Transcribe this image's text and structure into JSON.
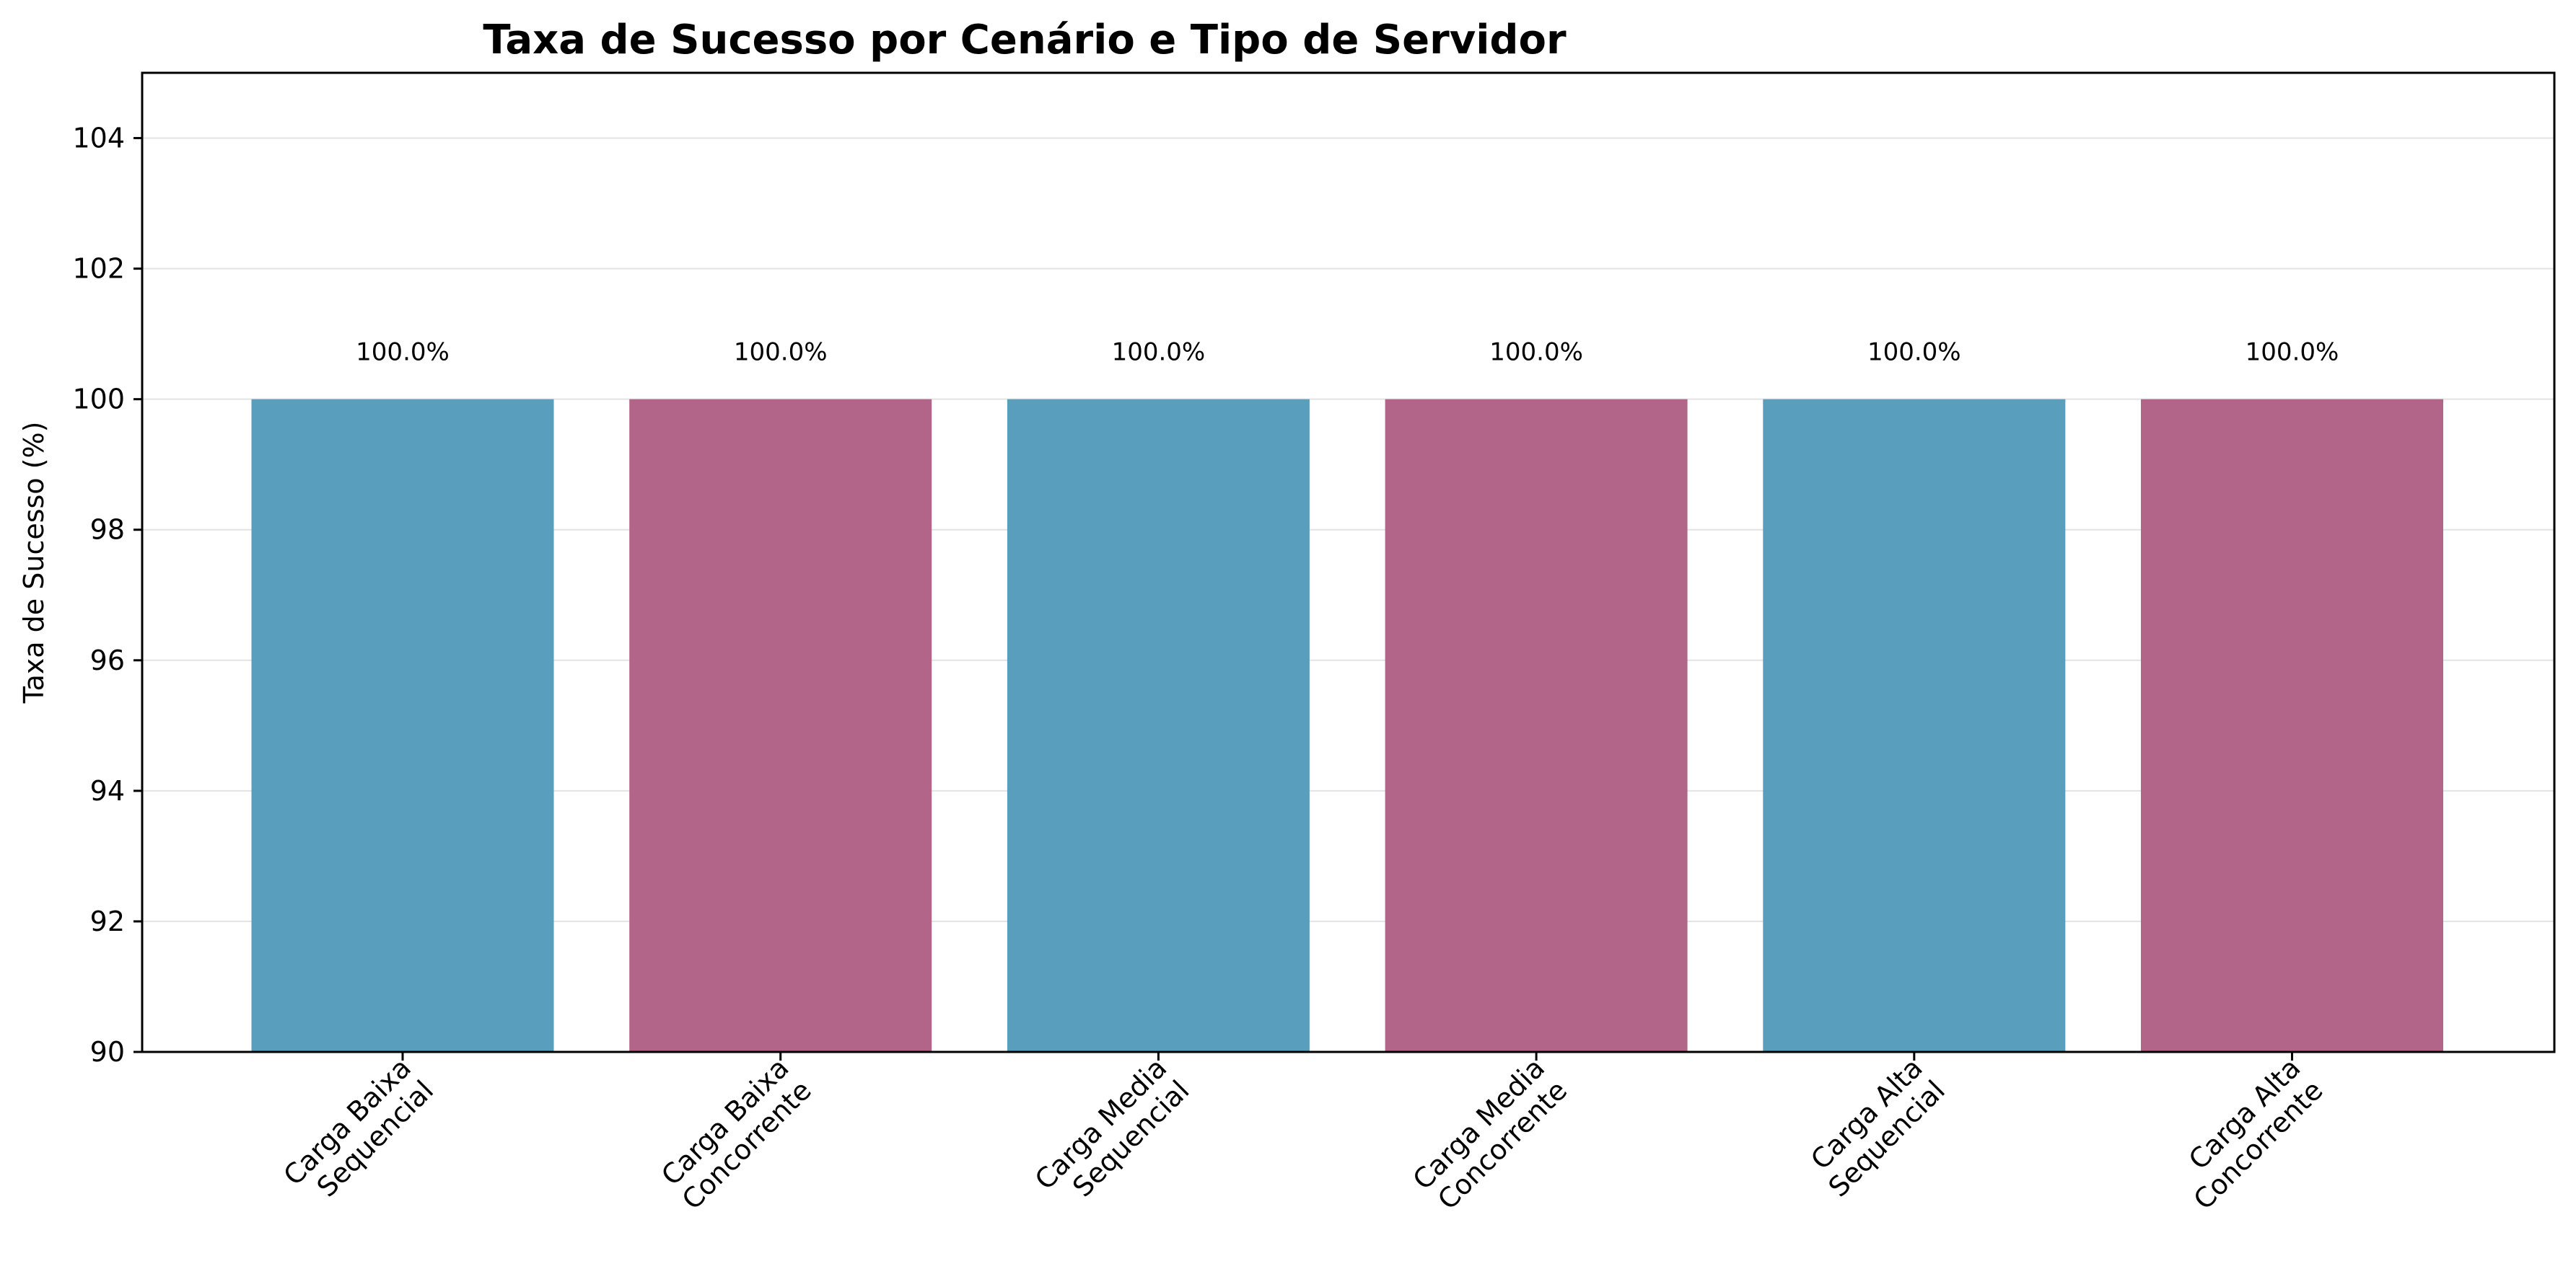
{
  "chart_data": {
    "type": "bar",
    "title": "Taxa de Sucesso por Cenário e Tipo de Servidor",
    "xlabel": "",
    "ylabel": "Taxa de Sucesso (%)",
    "ylim": [
      90,
      105
    ],
    "yticks": [
      "90",
      "92",
      "94",
      "96",
      "98",
      "100",
      "102",
      "104"
    ],
    "grid": "horizontal",
    "categories": [
      [
        "Carga Baixa",
        "Sequencial"
      ],
      [
        "Carga Baixa",
        "Concorrente"
      ],
      [
        "Carga Media",
        "Sequencial"
      ],
      [
        "Carga Media",
        "Concorrente"
      ],
      [
        "Carga Alta",
        "Sequencial"
      ],
      [
        "Carga Alta",
        "Concorrente"
      ]
    ],
    "values": [
      100.0,
      100.0,
      100.0,
      100.0,
      100.0,
      100.0
    ],
    "data_labels": [
      "100.0%",
      "100.0%",
      "100.0%",
      "100.0%",
      "100.0%",
      "100.0%"
    ],
    "bar_colors": [
      "#5a9ebd",
      "#b36489",
      "#5a9ebd",
      "#b36489",
      "#5a9ebd",
      "#b36489"
    ]
  }
}
